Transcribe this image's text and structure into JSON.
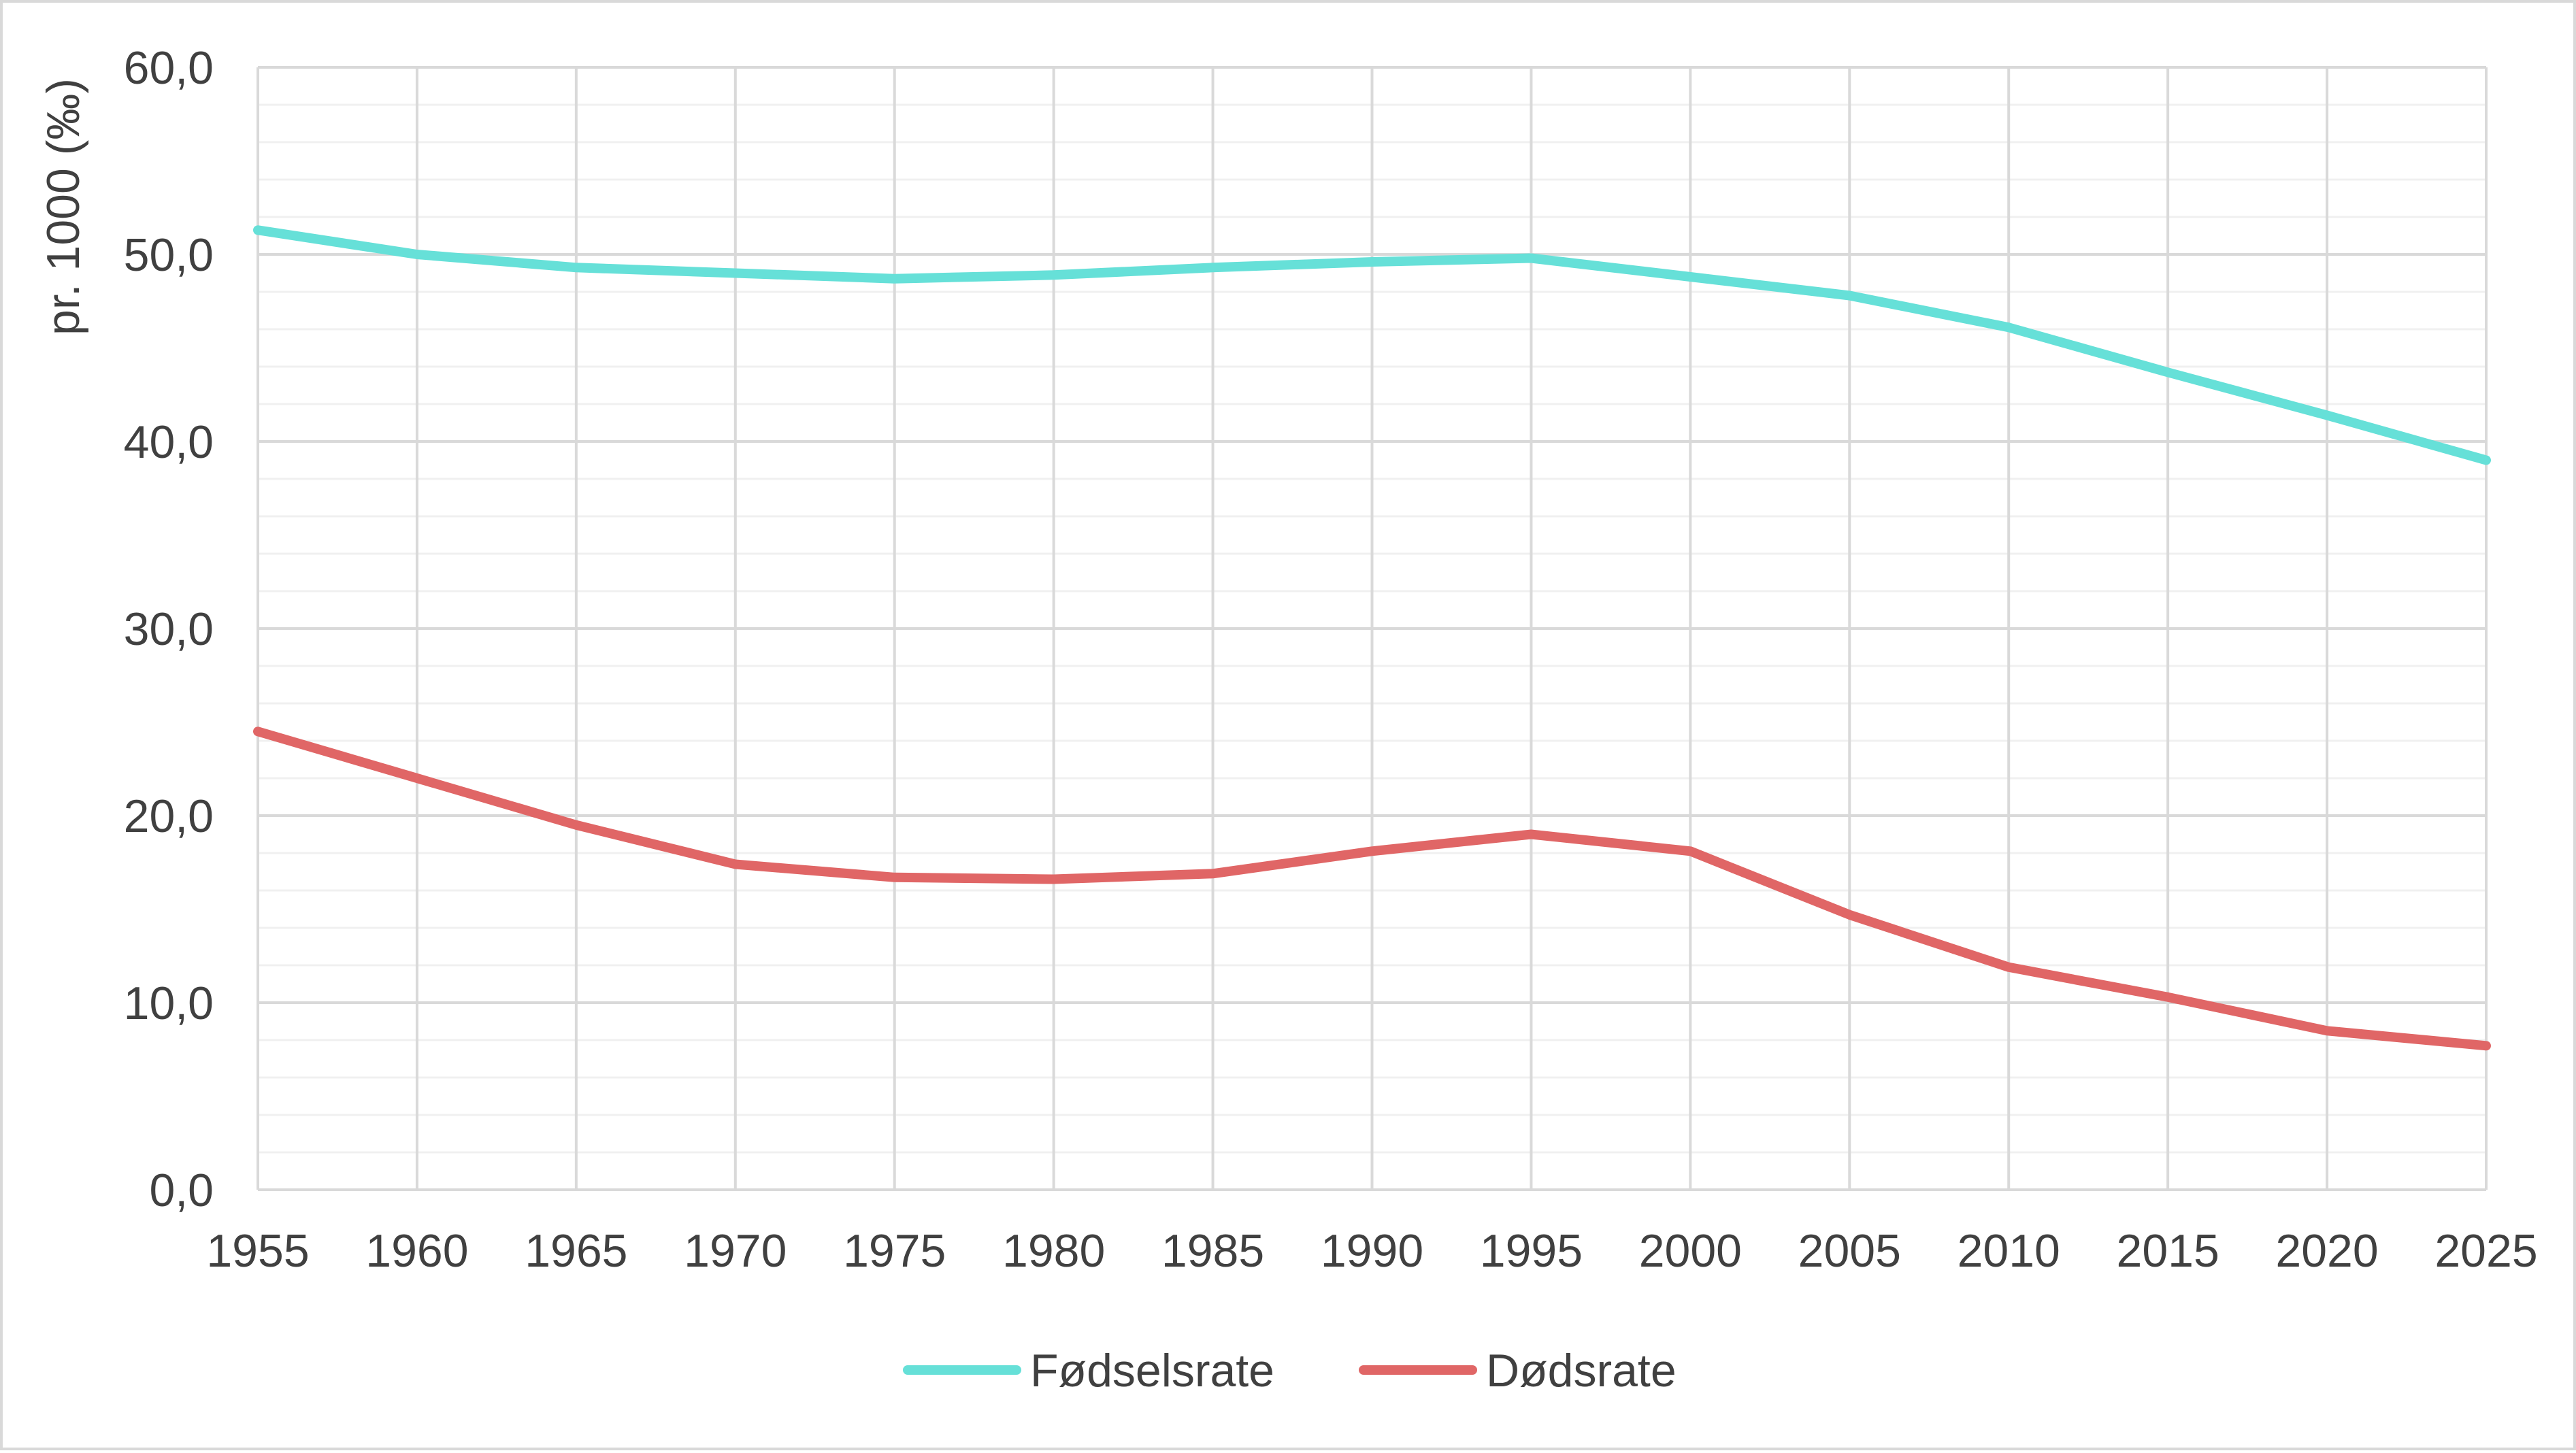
{
  "chart_data": {
    "type": "line",
    "title": "",
    "xlabel": "",
    "ylabel": "pr. 1000 (‰)",
    "x": [
      1955,
      1960,
      1965,
      1970,
      1975,
      1980,
      1985,
      1990,
      1995,
      2000,
      2005,
      2010,
      2015,
      2020,
      2025
    ],
    "x_tick_labels": [
      "1955",
      "1960",
      "1965",
      "1970",
      "1975",
      "1980",
      "1985",
      "1990",
      "1995",
      "2000",
      "2005",
      "2010",
      "2015",
      "2020",
      "2025"
    ],
    "ylim": [
      0,
      60
    ],
    "y_ticks": [
      0,
      10,
      20,
      30,
      40,
      50,
      60
    ],
    "y_tick_labels": [
      "0,0",
      "10,0",
      "20,0",
      "30,0",
      "40,0",
      "50,0",
      "60,0"
    ],
    "grid": "on",
    "legend_position": "bottom",
    "series": [
      {
        "name": "Fødselsrate",
        "color": "#66e0d8",
        "values": [
          51.3,
          50.0,
          49.3,
          49.0,
          48.7,
          48.9,
          49.3,
          49.6,
          49.8,
          48.8,
          47.8,
          46.1,
          43.7,
          41.4,
          39.0
        ]
      },
      {
        "name": "Dødsrate",
        "color": "#e06666",
        "values": [
          24.5,
          22.0,
          19.5,
          17.4,
          16.7,
          16.6,
          16.9,
          18.1,
          19.0,
          18.1,
          14.7,
          11.9,
          10.3,
          8.5,
          7.7
        ]
      }
    ]
  }
}
